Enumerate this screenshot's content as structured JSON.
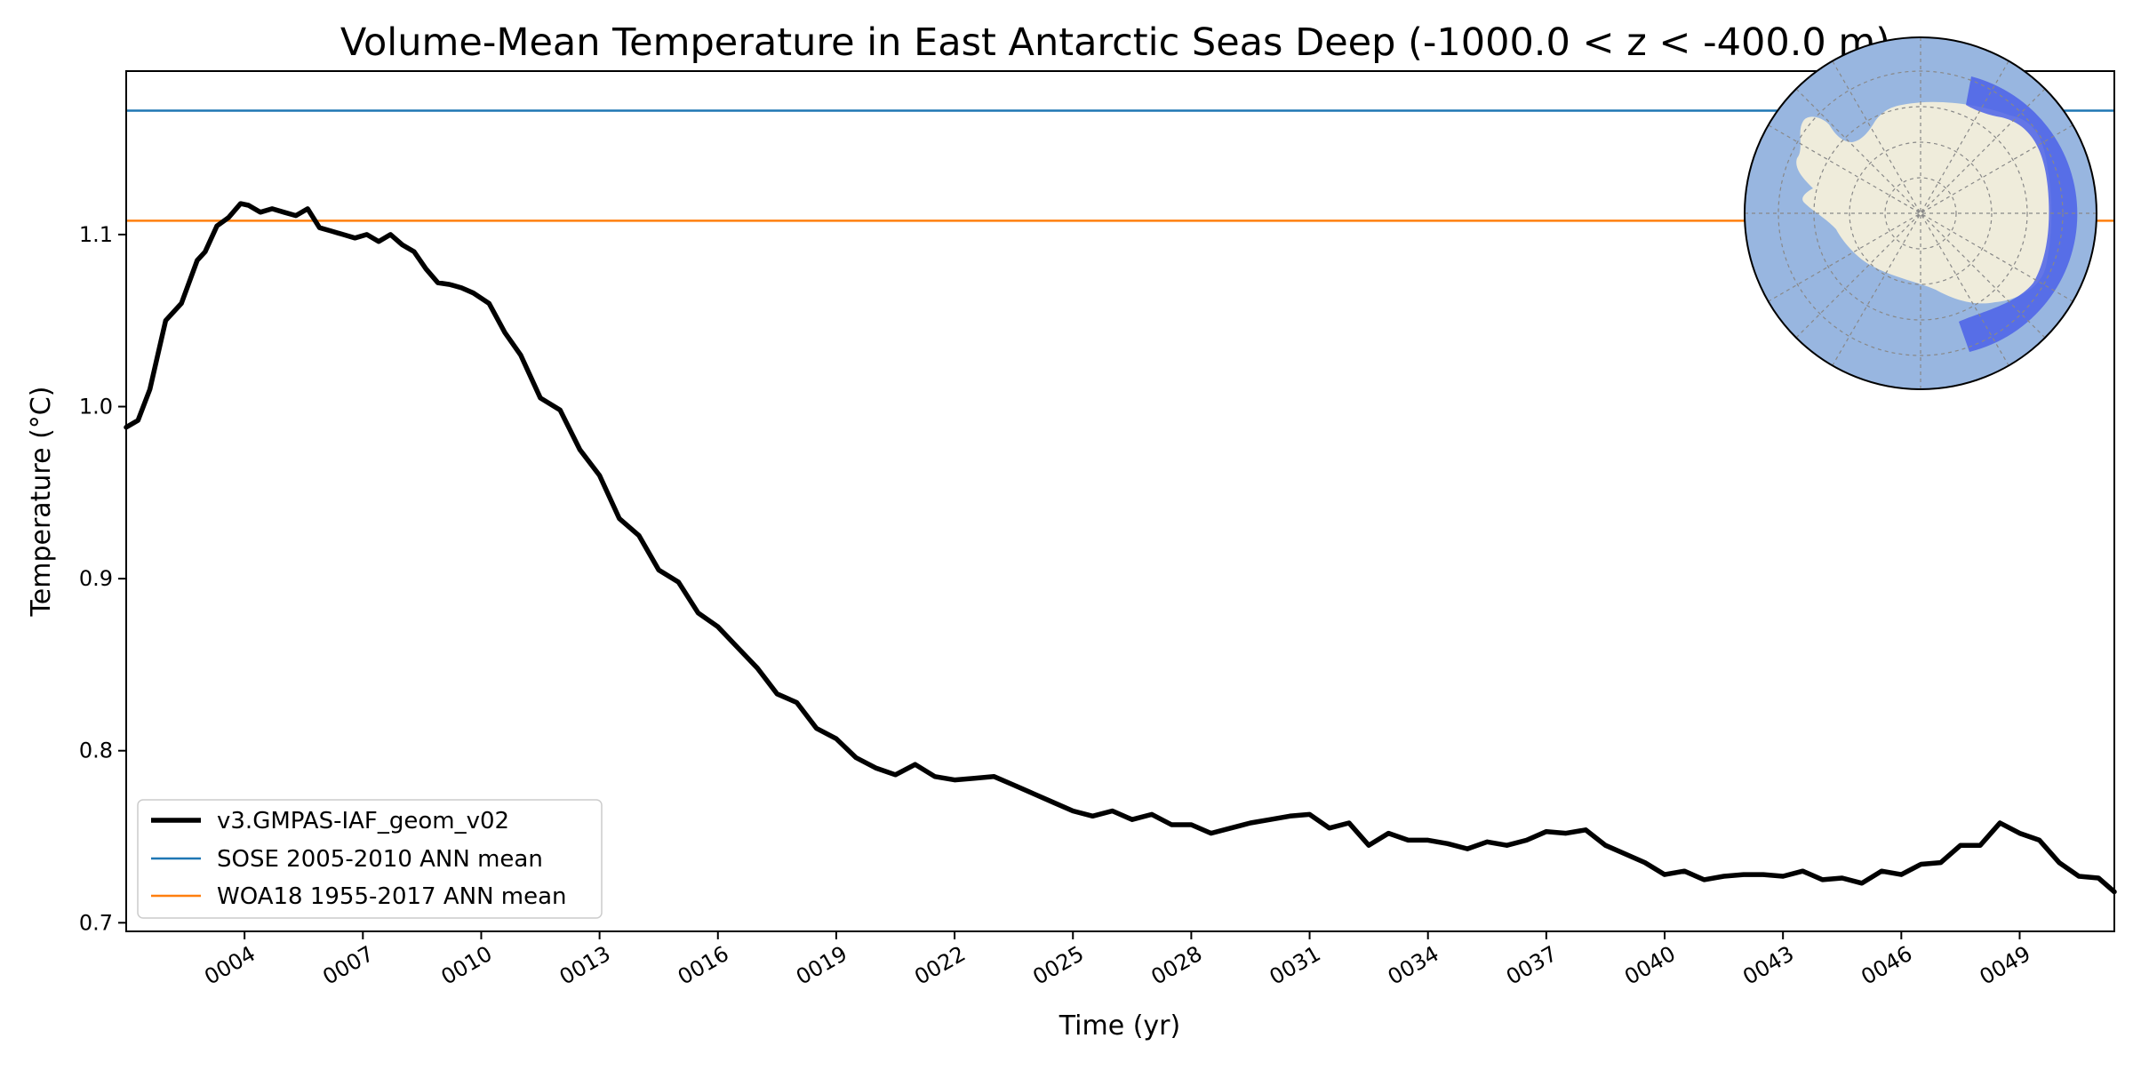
{
  "chart_data": {
    "type": "line",
    "title": "Volume-Mean Temperature in East Antarctic Seas Deep (-1000.0 < z < -400.0 m)",
    "xlabel": "Time (yr)",
    "ylabel": "Temperature ($^\\circ$C)",
    "ylabel_display": "Temperature (°C)",
    "xlim": [
      1,
      51.4
    ],
    "ylim": [
      0.695,
      1.195
    ],
    "x_ticks": [
      4,
      7,
      10,
      13,
      16,
      19,
      22,
      25,
      28,
      31,
      34,
      37,
      40,
      43,
      46,
      49
    ],
    "x_tick_labels": [
      "0004",
      "0007",
      "0010",
      "0013",
      "0016",
      "0019",
      "0022",
      "0025",
      "0028",
      "0031",
      "0034",
      "0037",
      "0040",
      "0043",
      "0046",
      "0049"
    ],
    "y_ticks": [
      0.7,
      0.8,
      0.9,
      1.0,
      1.1
    ],
    "y_tick_labels": [
      "0.7",
      "0.8",
      "0.9",
      "1.0",
      "1.1"
    ],
    "legend_position": "lower-left",
    "series": [
      {
        "name": "v3.GMPAS-IAF_geom_v02",
        "color": "#000000",
        "style": "thick",
        "x": [
          1.0,
          1.3,
          1.6,
          2.0,
          2.4,
          2.8,
          3.0,
          3.3,
          3.6,
          3.9,
          4.1,
          4.4,
          4.7,
          5.0,
          5.3,
          5.6,
          5.9,
          6.2,
          6.5,
          6.8,
          7.1,
          7.4,
          7.7,
          8.0,
          8.3,
          8.6,
          8.9,
          9.2,
          9.5,
          9.8,
          10.2,
          10.6,
          11.0,
          11.5,
          12.0,
          12.5,
          13.0,
          13.5,
          14.0,
          14.5,
          15.0,
          15.5,
          16.0,
          16.5,
          17.0,
          17.5,
          18.0,
          18.5,
          19.0,
          19.5,
          20.0,
          20.5,
          21.0,
          21.5,
          22.0,
          22.5,
          23.0,
          23.5,
          24.0,
          24.5,
          25.0,
          25.5,
          26.0,
          26.5,
          27.0,
          27.5,
          28.0,
          28.5,
          29.0,
          29.5,
          30.0,
          30.5,
          31.0,
          31.5,
          32.0,
          32.5,
          33.0,
          33.5,
          34.0,
          34.5,
          35.0,
          35.5,
          36.0,
          36.5,
          37.0,
          37.5,
          38.0,
          38.5,
          39.0,
          39.5,
          40.0,
          40.5,
          41.0,
          41.5,
          42.0,
          42.5,
          43.0,
          43.5,
          44.0,
          44.5,
          45.0,
          45.5,
          46.0,
          46.5,
          47.0,
          47.5,
          48.0,
          48.5,
          49.0,
          49.5,
          50.0,
          50.5,
          51.0,
          51.4
        ],
        "values": [
          0.988,
          0.992,
          1.01,
          1.05,
          1.06,
          1.085,
          1.09,
          1.105,
          1.11,
          1.118,
          1.117,
          1.113,
          1.115,
          1.113,
          1.111,
          1.115,
          1.104,
          1.102,
          1.1,
          1.098,
          1.1,
          1.096,
          1.1,
          1.094,
          1.09,
          1.08,
          1.072,
          1.071,
          1.069,
          1.066,
          1.06,
          1.043,
          1.03,
          1.005,
          0.998,
          0.975,
          0.96,
          0.935,
          0.925,
          0.905,
          0.898,
          0.88,
          0.872,
          0.86,
          0.848,
          0.833,
          0.828,
          0.813,
          0.807,
          0.796,
          0.79,
          0.786,
          0.792,
          0.785,
          0.783,
          0.784,
          0.785,
          0.78,
          0.775,
          0.77,
          0.765,
          0.762,
          0.765,
          0.76,
          0.763,
          0.757,
          0.757,
          0.752,
          0.755,
          0.758,
          0.76,
          0.762,
          0.763,
          0.755,
          0.758,
          0.745,
          0.752,
          0.748,
          0.748,
          0.746,
          0.743,
          0.747,
          0.745,
          0.748,
          0.753,
          0.752,
          0.754,
          0.745,
          0.74,
          0.735,
          0.728,
          0.73,
          0.725,
          0.727,
          0.728,
          0.728,
          0.727,
          0.73,
          0.725,
          0.726,
          0.723,
          0.73,
          0.728,
          0.734,
          0.735,
          0.745,
          0.745,
          0.758,
          0.752,
          0.748,
          0.735,
          0.727,
          0.726,
          0.718
        ]
      },
      {
        "name": "SOSE 2005-2010 ANN mean",
        "color": "#1f77b4",
        "style": "hline",
        "values": [
          1.172
        ]
      },
      {
        "name": "WOA18 1955-2017 ANN mean",
        "color": "#ff7f0e",
        "style": "hline",
        "values": [
          1.108
        ]
      }
    ],
    "inset_map": {
      "projection": "south-polar-stereographic",
      "ocean_color": "#98b6e0",
      "land_color": "#efecdb",
      "region_color": "#4b62e8"
    }
  }
}
